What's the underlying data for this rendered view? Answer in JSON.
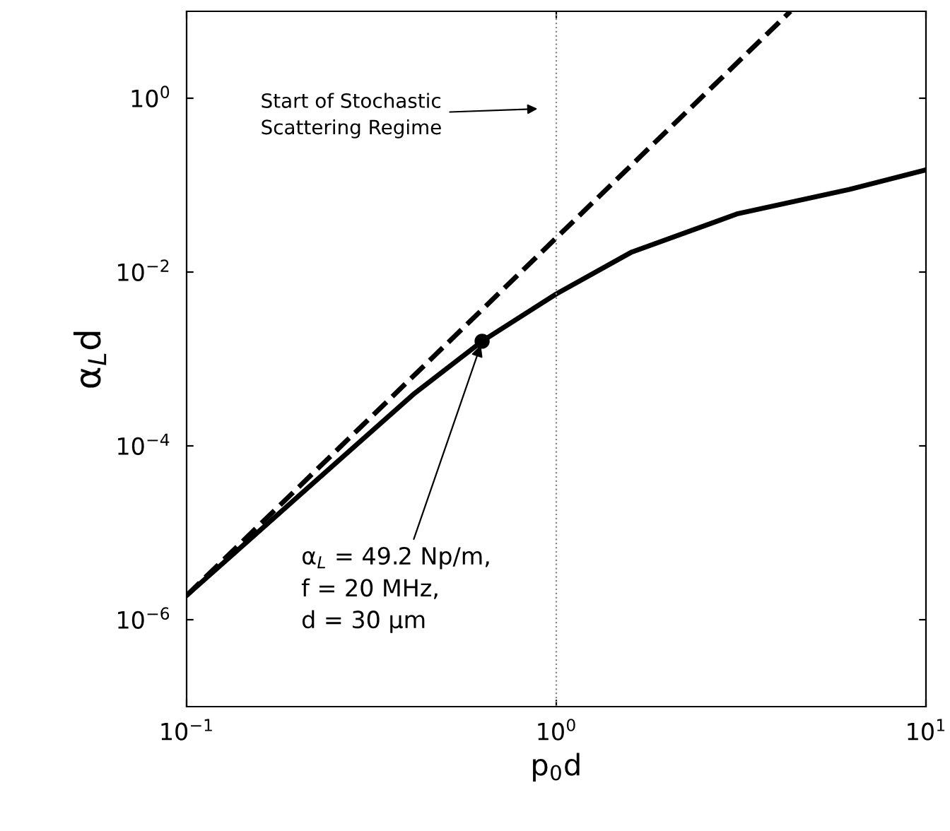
{
  "chart_data": {
    "type": "line",
    "xlabel": "p$_{0}$d",
    "ylabel": "α$_{L}$d",
    "log": "xy",
    "grid": false,
    "legend": false,
    "xlim": [
      0.1,
      10
    ],
    "ylim": [
      1e-07,
      10
    ],
    "xticks": [
      {
        "value": 0.1,
        "label": "10$^{−1}$"
      },
      {
        "value": 1,
        "label": "10$^{0}$"
      },
      {
        "value": 10,
        "label": "10$^{1}$"
      }
    ],
    "yticks": [
      {
        "value": 1e-06,
        "label": "10$^{−6}$"
      },
      {
        "value": 0.0001,
        "label": "10$^{−4}$"
      },
      {
        "value": 0.01,
        "label": "10$^{−2}$"
      },
      {
        "value": 1,
        "label": "10$^{0}$"
      }
    ],
    "series": [
      {
        "color": "#000000",
        "line_style": "solid",
        "marker": "none",
        "x": [
          0.1,
          0.2,
          0.41,
          0.63,
          1,
          1.6,
          3.1,
          6.2,
          10
        ],
        "values": [
          1.9e-06,
          2.6e-05,
          0.00039,
          0.0016,
          0.0056,
          0.017,
          0.047,
          0.089,
          0.15
        ]
      },
      {
        "color": "#000000",
        "line_style": "dashed",
        "marker": "none",
        "x": [
          0.1,
          4.3
        ],
        "values": [
          1.9e-06,
          10
        ]
      },
      {
        "type": "scatter",
        "color": "#000000",
        "marker": "circle",
        "x": [
          0.63
        ],
        "values": [
          0.0016
        ]
      }
    ],
    "ref_lines": [
      {
        "axis": "x",
        "value": 1,
        "color": "#888888",
        "line_style": "dotted"
      }
    ],
    "annotations": [
      "Start of Stochastic\nScattering Regime",
      {
        "text": "α$_{L}$ = 49.2 Np/m,\nf = 20 MHz,\nd = 30 μm",
        "x": 0.63,
        "y": 0.0016
      }
    ]
  }
}
